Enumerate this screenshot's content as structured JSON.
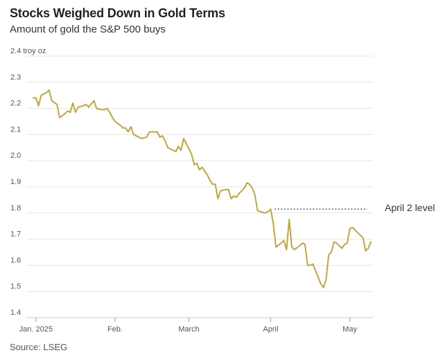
{
  "chart_data": {
    "type": "line",
    "title": "Stocks Weighed Down in Gold Terms",
    "subtitle": "Amount of gold the S&P 500 buys",
    "source": "Source: LSEG",
    "y_unit": "troy oz",
    "ylim": [
      1.4,
      2.4
    ],
    "y_ticks": [
      1.4,
      1.5,
      1.6,
      1.7,
      1.8,
      1.9,
      2.0,
      2.1,
      2.2,
      2.3,
      2.4
    ],
    "y_tick_labels": [
      "1.4",
      "1.5",
      "1.6",
      "1.7",
      "1.8",
      "1.9",
      "2.0",
      "2.1",
      "2.2",
      "2.3",
      "2.4"
    ],
    "x_ticks": [
      "2025-01-02",
      "2025-02-01",
      "2025-03-01",
      "2025-04-01",
      "2025-05-01"
    ],
    "x_tick_labels": [
      "Jan. 2025",
      "Feb.",
      "March",
      "April",
      "May"
    ],
    "grid": true,
    "series": [
      {
        "color": "#c4a43c",
        "points": [
          [
            "2025-01-01",
            2.24
          ],
          [
            "2025-01-02",
            2.24
          ],
          [
            "2025-01-03",
            2.21
          ],
          [
            "2025-01-04",
            2.25
          ],
          [
            "2025-01-06",
            2.26
          ],
          [
            "2025-01-07",
            2.27
          ],
          [
            "2025-01-08",
            2.23
          ],
          [
            "2025-01-10",
            2.215
          ],
          [
            "2025-01-11",
            2.165
          ],
          [
            "2025-01-13",
            2.18
          ],
          [
            "2025-01-14",
            2.19
          ],
          [
            "2025-01-15",
            2.185
          ],
          [
            "2025-01-16",
            2.22
          ],
          [
            "2025-01-17",
            2.185
          ],
          [
            "2025-01-18",
            2.205
          ],
          [
            "2025-01-20",
            2.21
          ],
          [
            "2025-01-21",
            2.215
          ],
          [
            "2025-01-22",
            2.205
          ],
          [
            "2025-01-24",
            2.23
          ],
          [
            "2025-01-25",
            2.2
          ],
          [
            "2025-01-27",
            2.195
          ],
          [
            "2025-01-28",
            2.195
          ],
          [
            "2025-01-29",
            2.2
          ],
          [
            "2025-01-30",
            2.185
          ],
          [
            "2025-01-31",
            2.165
          ],
          [
            "2025-02-01",
            2.15
          ],
          [
            "2025-02-03",
            2.135
          ],
          [
            "2025-02-04",
            2.125
          ],
          [
            "2025-02-05",
            2.125
          ],
          [
            "2025-02-06",
            2.11
          ],
          [
            "2025-02-07",
            2.13
          ],
          [
            "2025-02-08",
            2.1
          ],
          [
            "2025-02-10",
            2.09
          ],
          [
            "2025-02-11",
            2.085
          ],
          [
            "2025-02-13",
            2.09
          ],
          [
            "2025-02-14",
            2.11
          ],
          [
            "2025-02-16",
            2.11
          ],
          [
            "2025-02-17",
            2.11
          ],
          [
            "2025-02-18",
            2.09
          ],
          [
            "2025-02-19",
            2.095
          ],
          [
            "2025-02-20",
            2.075
          ],
          [
            "2025-02-21",
            2.05
          ],
          [
            "2025-02-23",
            2.04
          ],
          [
            "2025-02-24",
            2.035
          ],
          [
            "2025-02-25",
            2.055
          ],
          [
            "2025-02-26",
            2.04
          ],
          [
            "2025-02-27",
            2.085
          ],
          [
            "2025-02-28",
            2.065
          ],
          [
            "2025-03-01",
            2.045
          ],
          [
            "2025-03-02",
            2.025
          ],
          [
            "2025-03-03",
            1.985
          ],
          [
            "2025-03-04",
            1.99
          ],
          [
            "2025-03-05",
            1.965
          ],
          [
            "2025-03-06",
            1.975
          ],
          [
            "2025-03-07",
            1.96
          ],
          [
            "2025-03-08",
            1.945
          ],
          [
            "2025-03-09",
            1.925
          ],
          [
            "2025-03-10",
            1.91
          ],
          [
            "2025-03-11",
            1.91
          ],
          [
            "2025-03-12",
            1.855
          ],
          [
            "2025-03-13",
            1.885
          ],
          [
            "2025-03-15",
            1.89
          ],
          [
            "2025-03-16",
            1.89
          ],
          [
            "2025-03-17",
            1.855
          ],
          [
            "2025-03-18",
            1.865
          ],
          [
            "2025-03-19",
            1.86
          ],
          [
            "2025-03-20",
            1.875
          ],
          [
            "2025-03-22",
            1.895
          ],
          [
            "2025-03-23",
            1.915
          ],
          [
            "2025-03-24",
            1.91
          ],
          [
            "2025-03-25",
            1.895
          ],
          [
            "2025-03-26",
            1.87
          ],
          [
            "2025-03-27",
            1.81
          ],
          [
            "2025-03-28",
            1.805
          ],
          [
            "2025-03-30",
            1.8
          ],
          [
            "2025-03-31",
            1.805
          ],
          [
            "2025-04-01",
            1.815
          ],
          [
            "2025-04-02",
            1.76
          ],
          [
            "2025-04-03",
            1.67
          ],
          [
            "2025-04-05",
            1.685
          ],
          [
            "2025-04-06",
            1.695
          ],
          [
            "2025-04-07",
            1.66
          ],
          [
            "2025-04-08",
            1.775
          ],
          [
            "2025-04-09",
            1.67
          ],
          [
            "2025-04-10",
            1.66
          ],
          [
            "2025-04-12",
            1.675
          ],
          [
            "2025-04-13",
            1.685
          ],
          [
            "2025-04-14",
            1.68
          ],
          [
            "2025-04-15",
            1.6
          ],
          [
            "2025-04-16",
            1.6
          ],
          [
            "2025-04-17",
            1.605
          ],
          [
            "2025-04-18",
            1.58
          ],
          [
            "2025-04-19",
            1.555
          ],
          [
            "2025-04-20",
            1.53
          ],
          [
            "2025-04-21",
            1.515
          ],
          [
            "2025-04-22",
            1.545
          ],
          [
            "2025-04-23",
            1.64
          ],
          [
            "2025-04-24",
            1.65
          ],
          [
            "2025-04-25",
            1.69
          ],
          [
            "2025-04-26",
            1.685
          ],
          [
            "2025-04-27",
            1.675
          ],
          [
            "2025-04-28",
            1.665
          ],
          [
            "2025-04-29",
            1.68
          ],
          [
            "2025-04-30",
            1.685
          ],
          [
            "2025-05-01",
            1.74
          ],
          [
            "2025-05-02",
            1.745
          ],
          [
            "2025-05-03",
            1.735
          ],
          [
            "2025-05-05",
            1.715
          ],
          [
            "2025-05-06",
            1.705
          ],
          [
            "2025-05-07",
            1.655
          ],
          [
            "2025-05-08",
            1.665
          ],
          [
            "2025-05-09",
            1.69
          ]
        ]
      }
    ],
    "annotations": [
      {
        "type": "hline",
        "y": 1.815,
        "x_start": "2025-04-02",
        "x_end": "2025-05-10",
        "style": "dotted",
        "label": "April 2 level"
      }
    ]
  }
}
